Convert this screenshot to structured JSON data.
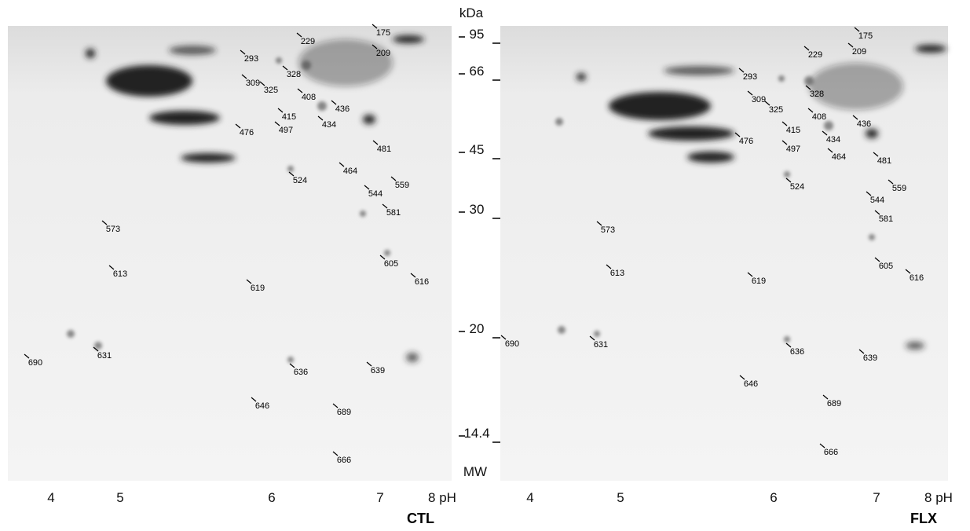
{
  "mw_axis": {
    "unit": "kDa",
    "ticks": [
      "95",
      "66",
      "45",
      "30",
      "20",
      "14.4"
    ],
    "footer": "MW"
  },
  "panels": [
    {
      "name": "CTL",
      "ph_ticks": [
        "4",
        "5",
        "6",
        "7",
        "8 pH"
      ],
      "spots": [
        "175",
        "229",
        "209",
        "293",
        "328",
        "309",
        "325",
        "408",
        "436",
        "415",
        "434",
        "476",
        "497",
        "481",
        "464",
        "524",
        "559",
        "544",
        "581",
        "573",
        "605",
        "613",
        "616",
        "619",
        "631",
        "690",
        "636",
        "639",
        "646",
        "689",
        "666"
      ]
    },
    {
      "name": "FLX",
      "ph_ticks": [
        "4",
        "5",
        "6",
        "7",
        "8 pH"
      ],
      "spots": [
        "175",
        "209",
        "229",
        "293",
        "328",
        "309",
        "325",
        "408",
        "436",
        "415",
        "434",
        "476",
        "497",
        "464",
        "481",
        "524",
        "559",
        "544",
        "581",
        "573",
        "605",
        "613",
        "616",
        "619",
        "690",
        "631",
        "636",
        "639",
        "646",
        "689",
        "666"
      ]
    }
  ]
}
